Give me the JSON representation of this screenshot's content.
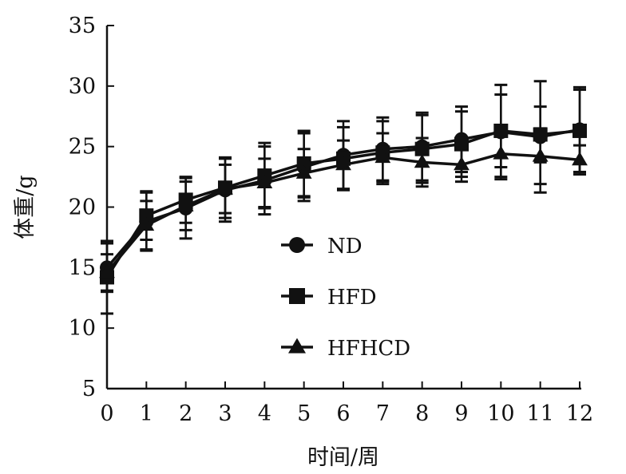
{
  "chart_data": {
    "type": "line",
    "title": "",
    "xlabel": "时间/周",
    "ylabel": "体重/g",
    "x": [
      0,
      1,
      2,
      3,
      4,
      5,
      6,
      7,
      8,
      9,
      10,
      11,
      12
    ],
    "xlim": [
      0,
      12
    ],
    "ylim": [
      5,
      35
    ],
    "yticks": [
      5,
      10,
      15,
      20,
      25,
      30,
      35
    ],
    "grid": false,
    "legend_position": "center",
    "series": [
      {
        "name": "ND",
        "marker": "circle",
        "values": [
          15.0,
          18.8,
          19.9,
          21.4,
          22.2,
          23.3,
          24.3,
          24.8,
          25.0,
          25.6,
          26.2,
          25.8,
          26.4
        ],
        "error": [
          2.0,
          2.4,
          2.5,
          2.6,
          2.8,
          2.8,
          2.8,
          2.6,
          2.8,
          2.7,
          3.9,
          4.6,
          3.5
        ]
      },
      {
        "name": "HFD",
        "marker": "square",
        "values": [
          14.2,
          19.3,
          20.6,
          21.6,
          22.6,
          23.6,
          24.0,
          24.5,
          24.8,
          25.2,
          26.3,
          26.0,
          26.3
        ],
        "error": [
          3.0,
          2.0,
          1.9,
          2.5,
          2.7,
          2.7,
          2.6,
          2.6,
          2.8,
          2.7,
          3.0,
          2.3,
          3.4
        ]
      },
      {
        "name": "HFHCD",
        "marker": "triangle",
        "values": [
          14.6,
          18.5,
          20.1,
          21.5,
          22.0,
          22.8,
          23.5,
          24.1,
          23.7,
          23.5,
          24.4,
          24.2,
          23.9
        ],
        "error": [
          1.5,
          2.0,
          2.0,
          2.0,
          2.0,
          2.0,
          2.0,
          2.0,
          2.0,
          1.4,
          1.9,
          2.3,
          1.2
        ]
      }
    ],
    "colors": {
      "line": "#111111",
      "axis": "#111111"
    }
  }
}
